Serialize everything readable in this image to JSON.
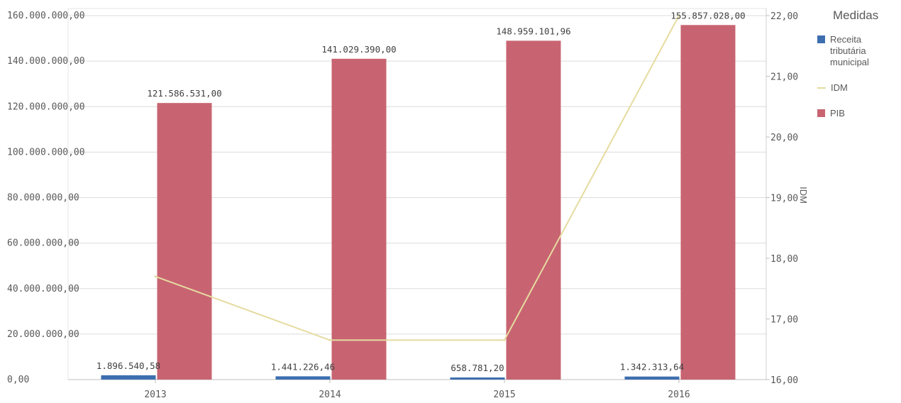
{
  "chart_data": {
    "type": "bar",
    "categories": [
      "2013",
      "2014",
      "2015",
      "2016"
    ],
    "series": [
      {
        "name": "Receita tributária municipal",
        "type": "bar",
        "axis": "left",
        "color": "#3d6fb0",
        "values": [
          1896540.58,
          1441226.46,
          658781.2,
          1342313.64
        ],
        "labels": [
          "1.896.540,58",
          "1.441.226,46",
          "658.781,20",
          "1.342.313,64"
        ]
      },
      {
        "name": "IDM",
        "type": "line",
        "axis": "right",
        "color": "#e6dba0",
        "values": [
          17.7,
          16.65,
          16.65,
          22.0
        ]
      },
      {
        "name": "PIB",
        "type": "bar",
        "axis": "left",
        "color": "#c86472",
        "values": [
          121586531.0,
          141029390.0,
          148959101.96,
          155857028.0
        ],
        "labels": [
          "121.586.531,00",
          "141.029.390,00",
          "148.959.101,96",
          "155.857.028,00"
        ]
      }
    ],
    "y_left": {
      "range": [
        0,
        160000000
      ],
      "ticks": [
        "0,00",
        "20.000.000,00",
        "40.000.000,00",
        "60.000.000,00",
        "80.000.000,00",
        "100.000.000,00",
        "120.000.000,00",
        "140.000.000,00",
        "160.000.000,00"
      ]
    },
    "y_right": {
      "title": "IDM",
      "range": [
        16,
        22
      ],
      "ticks": [
        "16,00",
        "17,00",
        "18,00",
        "19,00",
        "20,00",
        "21,00",
        "22,00"
      ]
    },
    "grid": true,
    "legend": {
      "title": "Medidas",
      "placement": "right",
      "items": [
        {
          "label": "Receita tributária municipal",
          "color": "#3d6fb0",
          "kind": "box"
        },
        {
          "label": "IDM",
          "color": "#e6dba0",
          "kind": "line"
        },
        {
          "label": "PIB",
          "color": "#c86472",
          "kind": "box"
        }
      ]
    }
  }
}
